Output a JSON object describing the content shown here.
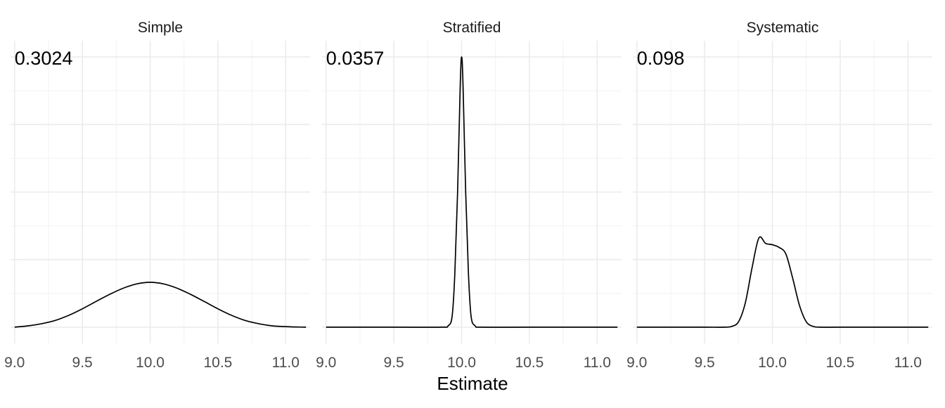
{
  "chart_data": {
    "type": "line",
    "facets": [
      "Simple",
      "Stratified",
      "Systematic"
    ],
    "xlabel": "Estimate",
    "ylabel": "",
    "xlim": [
      8.97,
      11.18
    ],
    "ylim": [
      -0.6,
      10.6
    ],
    "xticks": [
      9.0,
      9.5,
      10.0,
      10.5,
      11.0
    ],
    "xtick_labels": [
      "9.0",
      "9.5",
      "10.0",
      "10.5",
      "11.0"
    ],
    "show_y_tick_labels": false,
    "grid": true,
    "annotations": [
      "0.3024",
      "0.0357",
      "0.098"
    ],
    "series": [
      {
        "facet": "Simple",
        "x": [
          9.0,
          9.1,
          9.2,
          9.3,
          9.4,
          9.5,
          9.6,
          9.7,
          9.8,
          9.9,
          10.0,
          10.1,
          10.2,
          10.3,
          10.4,
          10.5,
          10.6,
          10.7,
          10.8,
          10.9,
          11.0,
          11.1,
          11.15
        ],
        "y": [
          0.0,
          0.05,
          0.13,
          0.25,
          0.44,
          0.68,
          0.95,
          1.21,
          1.44,
          1.6,
          1.66,
          1.6,
          1.44,
          1.21,
          0.95,
          0.68,
          0.44,
          0.25,
          0.13,
          0.05,
          0.02,
          0.005,
          0.0
        ]
      },
      {
        "facet": "Stratified",
        "x": [
          9.0,
          9.5,
          9.85,
          9.9,
          9.93,
          9.95,
          9.97,
          9.99,
          10.0,
          10.01,
          10.03,
          10.05,
          10.07,
          10.1,
          10.15,
          10.5,
          11.0,
          11.15
        ],
        "y": [
          0.0,
          0.0,
          0.0,
          0.05,
          0.4,
          2.0,
          5.0,
          9.0,
          10.0,
          9.0,
          5.0,
          2.0,
          0.4,
          0.05,
          0.0,
          0.0,
          0.0,
          0.0
        ]
      },
      {
        "facet": "Systematic",
        "x": [
          9.0,
          9.5,
          9.65,
          9.7,
          9.75,
          9.8,
          9.85,
          9.9,
          9.95,
          10.0,
          10.05,
          10.1,
          10.15,
          10.2,
          10.25,
          10.3,
          10.35,
          10.5,
          11.0,
          11.15
        ],
        "y": [
          0.0,
          0.0,
          0.0,
          0.03,
          0.2,
          0.9,
          2.2,
          3.3,
          3.1,
          3.05,
          2.95,
          2.7,
          1.8,
          0.8,
          0.2,
          0.03,
          0.0,
          0.0,
          0.0,
          0.0
        ]
      }
    ]
  }
}
